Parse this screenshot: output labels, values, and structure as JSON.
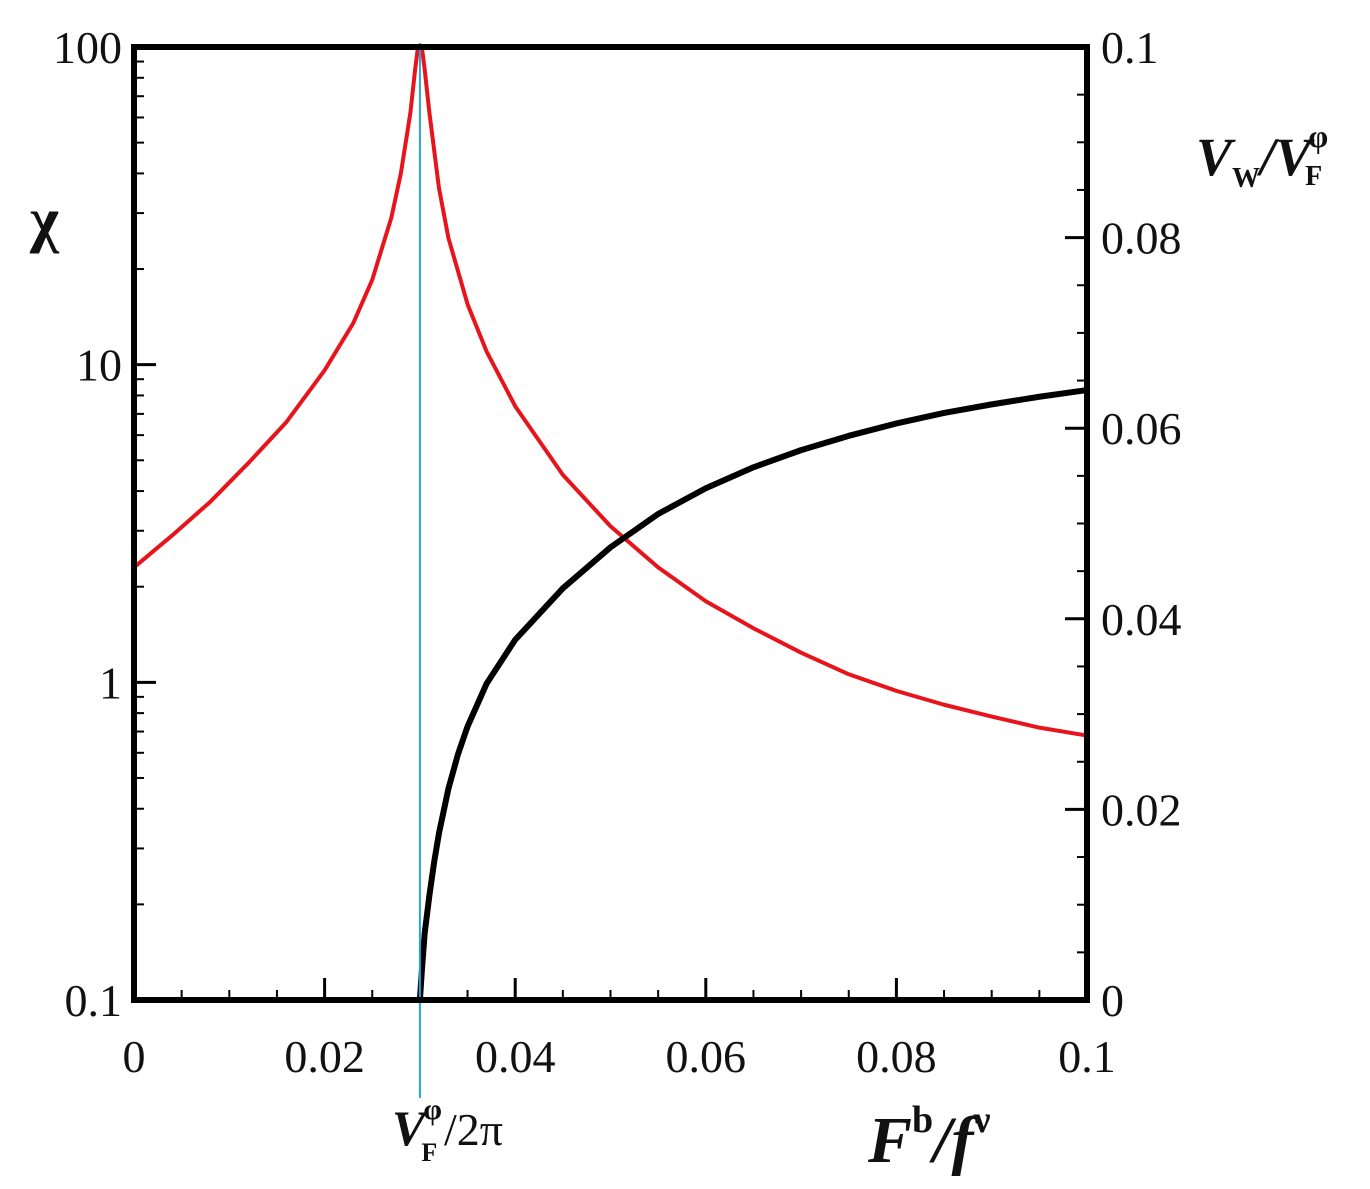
{
  "chart_data": {
    "type": "line",
    "x_axis": {
      "label_main": "F",
      "label_sup": "b",
      "label_sep": "/",
      "label_main2": "f",
      "label_sup2": "ν",
      "range": [
        0,
        0.1
      ],
      "ticks": [
        0,
        0.02,
        0.04,
        0.06,
        0.08,
        0.1
      ],
      "tick_labels": [
        "0",
        "0.02",
        "0.04",
        "0.06",
        "0.08",
        "0.1"
      ]
    },
    "y_left_axis": {
      "label": "χ",
      "scale": "log",
      "range": [
        0.1,
        100
      ],
      "ticks": [
        0.1,
        1,
        10,
        100
      ],
      "tick_labels": [
        "0.1",
        "1",
        "10",
        "100"
      ]
    },
    "y_right_axis": {
      "label_main": "V",
      "label_sub": "W",
      "label_sep": "/",
      "label_main2": "V",
      "label_sub2": "F",
      "label_sup2": "φ",
      "scale": "linear",
      "range": [
        0,
        0.1
      ],
      "ticks": [
        0,
        0.02,
        0.04,
        0.06,
        0.08,
        0.1
      ],
      "tick_labels": [
        "0",
        "0.02",
        "0.04",
        "0.06",
        "0.08",
        "0.1"
      ]
    },
    "vertical_marker": {
      "x": 0.03,
      "color": "#29a3d6",
      "label_main": "V",
      "label_sub": "F",
      "label_sup": "φ",
      "label_rest": "/2π"
    },
    "series": [
      {
        "axis": "left",
        "color": "#e8141c",
        "x": [
          0,
          0.004,
          0.008,
          0.012,
          0.016,
          0.02,
          0.023,
          0.025,
          0.027,
          0.028,
          0.029,
          0.0295,
          0.0298,
          0.03,
          0.0302,
          0.0305,
          0.031,
          0.032,
          0.033,
          0.035,
          0.037,
          0.04,
          0.045,
          0.05,
          0.055,
          0.06,
          0.065,
          0.07,
          0.075,
          0.08,
          0.085,
          0.09,
          0.095,
          0.1
        ],
        "values": [
          2.3,
          2.9,
          3.7,
          4.9,
          6.6,
          9.6,
          13.5,
          18.5,
          29,
          40,
          62,
          85,
          100,
          100,
          100,
          85,
          62,
          36,
          25,
          15.5,
          11,
          7.4,
          4.5,
          3.1,
          2.3,
          1.8,
          1.48,
          1.24,
          1.06,
          0.94,
          0.85,
          0.78,
          0.72,
          0.68
        ]
      },
      {
        "axis": "right",
        "color": "#000000",
        "x": [
          0.03,
          0.0302,
          0.0305,
          0.031,
          0.0315,
          0.032,
          0.033,
          0.034,
          0.035,
          0.037,
          0.04,
          0.045,
          0.05,
          0.055,
          0.06,
          0.065,
          0.07,
          0.075,
          0.08,
          0.085,
          0.09,
          0.095,
          0.1
        ],
        "values": [
          0,
          0.003,
          0.007,
          0.011,
          0.0145,
          0.0175,
          0.0222,
          0.0258,
          0.0287,
          0.0332,
          0.0378,
          0.0432,
          0.0475,
          0.051,
          0.0537,
          0.0559,
          0.0577,
          0.0592,
          0.0605,
          0.0616,
          0.0625,
          0.0633,
          0.064
        ]
      }
    ]
  }
}
